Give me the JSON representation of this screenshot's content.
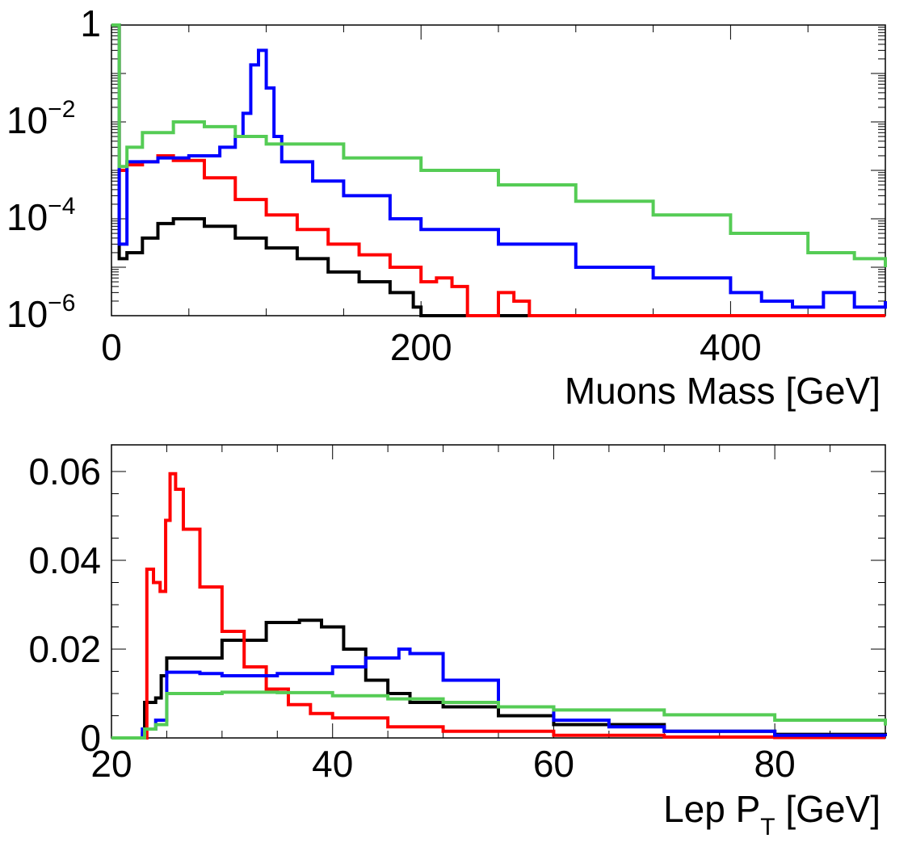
{
  "chart_data": [
    {
      "type": "line",
      "xlabel": "Muons Mass [GeV]",
      "xlim": [
        0,
        500
      ],
      "ylim": [
        1e-06,
        1
      ],
      "log_y": true,
      "x_ticks": [
        "0",
        "200",
        "400"
      ],
      "y_ticks": [
        {
          "base": "1",
          "exp": ""
        },
        {
          "base": "10",
          "exp": "−2"
        },
        {
          "base": "10",
          "exp": "−4"
        },
        {
          "base": "10",
          "exp": "−6"
        }
      ],
      "series": [
        {
          "color": "#000000",
          "points": [
            [
              0,
              1
            ],
            [
              5,
              1.5e-05
            ],
            [
              10,
              2e-05
            ],
            [
              20,
              4e-05
            ],
            [
              30,
              8e-05
            ],
            [
              40,
              0.0001
            ],
            [
              60,
              7e-05
            ],
            [
              80,
              4e-05
            ],
            [
              100,
              2.5e-05
            ],
            [
              120,
              1.5e-05
            ],
            [
              140,
              8e-06
            ],
            [
              160,
              5e-06
            ],
            [
              180,
              3e-06
            ],
            [
              195,
              1.5e-06
            ],
            [
              200,
              1e-06
            ]
          ]
        },
        {
          "color": "#ff0000",
          "points": [
            [
              0,
              1
            ],
            [
              5,
              0.001
            ],
            [
              10,
              0.0013
            ],
            [
              20,
              0.0015
            ],
            [
              30,
              0.002
            ],
            [
              40,
              0.0016
            ],
            [
              60,
              0.0007
            ],
            [
              80,
              0.00025
            ],
            [
              100,
              0.00012
            ],
            [
              120,
              6e-05
            ],
            [
              140,
              3e-05
            ],
            [
              160,
              1.8e-05
            ],
            [
              180,
              1e-05
            ],
            [
              200,
              5e-06
            ],
            [
              210,
              6e-06
            ],
            [
              220,
              4e-06
            ],
            [
              230,
              1e-06
            ],
            [
              250,
              3e-06
            ],
            [
              260,
              2e-06
            ],
            [
              270,
              1e-06
            ],
            [
              500,
              1e-06
            ]
          ]
        },
        {
          "color": "#0000ff",
          "points": [
            [
              0,
              1
            ],
            [
              5,
              3e-05
            ],
            [
              10,
              0.0015
            ],
            [
              30,
              0.0018
            ],
            [
              50,
              0.002
            ],
            [
              70,
              0.003
            ],
            [
              80,
              0.005
            ],
            [
              85,
              0.015
            ],
            [
              90,
              0.15
            ],
            [
              95,
              0.3
            ],
            [
              100,
              0.05
            ],
            [
              105,
              0.005
            ],
            [
              110,
              0.0015
            ],
            [
              130,
              0.0006
            ],
            [
              150,
              0.0003
            ],
            [
              180,
              0.0001
            ],
            [
              200,
              6e-05
            ],
            [
              250,
              3e-05
            ],
            [
              300,
              1e-05
            ],
            [
              350,
              6e-06
            ],
            [
              400,
              3e-06
            ],
            [
              420,
              2e-06
            ],
            [
              440,
              1.5e-06
            ],
            [
              460,
              3e-06
            ],
            [
              480,
              1.5e-06
            ],
            [
              500,
              2e-06
            ]
          ]
        },
        {
          "color": "#55cc55",
          "points": [
            [
              0,
              1
            ],
            [
              5,
              0.0012
            ],
            [
              10,
              0.003
            ],
            [
              20,
              0.006
            ],
            [
              40,
              0.01
            ],
            [
              60,
              0.008
            ],
            [
              80,
              0.005
            ],
            [
              100,
              0.0035
            ],
            [
              150,
              0.0018
            ],
            [
              200,
              0.001
            ],
            [
              250,
              0.0005
            ],
            [
              300,
              0.00023
            ],
            [
              350,
              0.00012
            ],
            [
              400,
              5e-05
            ],
            [
              450,
              2e-05
            ],
            [
              480,
              1.5e-05
            ],
            [
              500,
              1e-05
            ]
          ]
        }
      ]
    },
    {
      "type": "line",
      "xlabel": "Lep P",
      "xlabel_sub": "T",
      "xlabel_unit": " [GeV]",
      "xlim": [
        20,
        90
      ],
      "ylim": [
        0,
        0.066
      ],
      "x_ticks": [
        "20",
        "40",
        "60",
        "80"
      ],
      "y_ticks": [
        "0",
        "0.02",
        "0.04",
        "0.06"
      ],
      "series": [
        {
          "color": "#000000",
          "points": [
            [
              20,
              0
            ],
            [
              22.5,
              0
            ],
            [
              22.8,
              0.001
            ],
            [
              23,
              0.008
            ],
            [
              24,
              0.009
            ],
            [
              24.5,
              0.014
            ],
            [
              25,
              0.018
            ],
            [
              30,
              0.022
            ],
            [
              34,
              0.026
            ],
            [
              37,
              0.0265
            ],
            [
              39,
              0.025
            ],
            [
              41,
              0.02
            ],
            [
              43,
              0.013
            ],
            [
              45,
              0.01
            ],
            [
              47,
              0.008
            ],
            [
              50,
              0.007
            ],
            [
              55,
              0.005
            ],
            [
              60,
              0.003
            ],
            [
              70,
              0.0015
            ],
            [
              80,
              0.0008
            ],
            [
              90,
              0.0004
            ]
          ]
        },
        {
          "color": "#ff0000",
          "points": [
            [
              20,
              0
            ],
            [
              22.8,
              0
            ],
            [
              23.2,
              0.038
            ],
            [
              23.8,
              0.035
            ],
            [
              24.4,
              0.033
            ],
            [
              24.9,
              0.049
            ],
            [
              25.3,
              0.0595
            ],
            [
              25.8,
              0.056
            ],
            [
              26.5,
              0.047
            ],
            [
              28,
              0.034
            ],
            [
              30,
              0.024
            ],
            [
              32,
              0.016
            ],
            [
              34,
              0.011
            ],
            [
              36,
              0.0075
            ],
            [
              38,
              0.0055
            ],
            [
              40,
              0.0045
            ],
            [
              45,
              0.0025
            ],
            [
              50,
              0.0015
            ],
            [
              60,
              0.0006
            ],
            [
              70,
              0.0002
            ],
            [
              80,
              0.0001
            ],
            [
              90,
              0.0001
            ]
          ]
        },
        {
          "color": "#0000ff",
          "points": [
            [
              20,
              0
            ],
            [
              22.5,
              0
            ],
            [
              22.8,
              0.002
            ],
            [
              24,
              0.004
            ],
            [
              25,
              0.0148
            ],
            [
              28,
              0.0145
            ],
            [
              30,
              0.014
            ],
            [
              35,
              0.0145
            ],
            [
              40,
              0.016
            ],
            [
              43,
              0.018
            ],
            [
              46,
              0.02
            ],
            [
              47,
              0.019
            ],
            [
              50,
              0.013
            ],
            [
              55,
              0.007
            ],
            [
              60,
              0.004
            ],
            [
              65,
              0.0025
            ],
            [
              70,
              0.0015
            ],
            [
              80,
              0.0006
            ],
            [
              90,
              0.0004
            ]
          ]
        },
        {
          "color": "#55cc55",
          "points": [
            [
              20,
              0
            ],
            [
              22.5,
              0
            ],
            [
              23,
              0.002
            ],
            [
              24,
              0.003
            ],
            [
              25,
              0.01
            ],
            [
              30,
              0.0103
            ],
            [
              35,
              0.0102
            ],
            [
              40,
              0.0095
            ],
            [
              45,
              0.0088
            ],
            [
              50,
              0.008
            ],
            [
              55,
              0.007
            ],
            [
              60,
              0.0063
            ],
            [
              70,
              0.0052
            ],
            [
              80,
              0.004
            ],
            [
              90,
              0.0028
            ]
          ]
        }
      ]
    }
  ]
}
